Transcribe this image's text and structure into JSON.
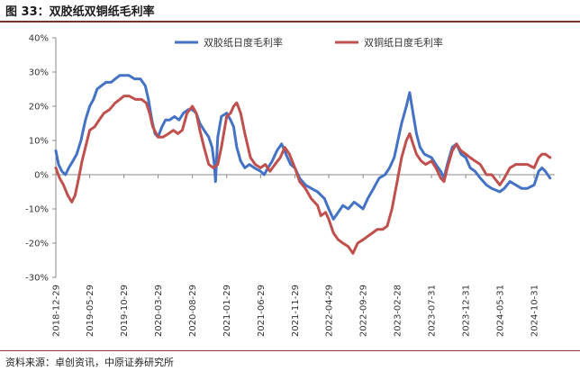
{
  "figure": {
    "title": "图 33：双胶纸双铜纸毛利率",
    "source": "资料来源：卓创资讯，中原证券研究所"
  },
  "colors": {
    "series_1": "#4472c4",
    "series_2": "#c0504d",
    "accent_rule": "#7a2e2e"
  },
  "chart_data": {
    "type": "line",
    "title": "",
    "xlabel": "",
    "ylabel": "",
    "ylim": [
      -30,
      40
    ],
    "y_ticks": [
      40,
      30,
      20,
      10,
      0,
      -10,
      -20,
      -30
    ],
    "y_tick_labels": [
      "40%",
      "30%",
      "20%",
      "10%",
      "0%",
      "-10%",
      "-20%",
      "-30%"
    ],
    "x_tick_labels": [
      "2018-12-29",
      "2019-05-29",
      "2019-10-29",
      "2020-03-29",
      "2020-08-29",
      "2021-01-29",
      "2021-06-29",
      "2021-11-29",
      "2022-04-29",
      "2022-09-29",
      "2023-02-28",
      "2023-07-31",
      "2023-12-31",
      "2024-05-31",
      "2024-10-31"
    ],
    "x_range": [
      "2018-12-29",
      "2025-01-31"
    ],
    "legend_position": "top",
    "grid": false,
    "series": [
      {
        "name": "双胶纸日度毛利率",
        "color": "#4472c4",
        "points": [
          [
            "2018-12-29",
            7
          ],
          [
            "2019-01-10",
            3
          ],
          [
            "2019-01-25",
            1
          ],
          [
            "2019-02-10",
            0
          ],
          [
            "2019-02-25",
            2
          ],
          [
            "2019-03-15",
            4
          ],
          [
            "2019-04-01",
            6
          ],
          [
            "2019-04-20",
            10
          ],
          [
            "2019-05-10",
            16
          ],
          [
            "2019-05-29",
            20
          ],
          [
            "2019-06-15",
            22
          ],
          [
            "2019-07-01",
            25
          ],
          [
            "2019-07-20",
            26
          ],
          [
            "2019-08-10",
            27
          ],
          [
            "2019-09-01",
            27
          ],
          [
            "2019-09-20",
            28
          ],
          [
            "2019-10-10",
            29
          ],
          [
            "2019-10-29",
            29
          ],
          [
            "2019-11-20",
            29
          ],
          [
            "2019-12-15",
            28
          ],
          [
            "2020-01-10",
            28
          ],
          [
            "2020-02-01",
            26
          ],
          [
            "2020-02-15",
            22
          ],
          [
            "2020-03-01",
            16
          ],
          [
            "2020-03-15",
            12
          ],
          [
            "2020-03-29",
            11
          ],
          [
            "2020-04-15",
            14
          ],
          [
            "2020-05-01",
            16
          ],
          [
            "2020-05-20",
            16
          ],
          [
            "2020-06-10",
            17
          ],
          [
            "2020-07-01",
            16
          ],
          [
            "2020-07-20",
            18
          ],
          [
            "2020-08-10",
            19
          ],
          [
            "2020-08-29",
            19
          ],
          [
            "2020-09-15",
            18
          ],
          [
            "2020-10-01",
            15
          ],
          [
            "2020-10-20",
            13
          ],
          [
            "2020-11-10",
            11
          ],
          [
            "2020-11-25",
            8
          ],
          [
            "2020-12-05",
            3
          ],
          [
            "2020-12-10",
            -2
          ],
          [
            "2020-12-20",
            11
          ],
          [
            "2021-01-05",
            17
          ],
          [
            "2021-01-29",
            18
          ],
          [
            "2021-02-15",
            16
          ],
          [
            "2021-03-01",
            14
          ],
          [
            "2021-03-15",
            8
          ],
          [
            "2021-04-01",
            4
          ],
          [
            "2021-04-20",
            2
          ],
          [
            "2021-05-10",
            3
          ],
          [
            "2021-06-01",
            2
          ],
          [
            "2021-06-29",
            1
          ],
          [
            "2021-07-15",
            0
          ],
          [
            "2021-08-01",
            2
          ],
          [
            "2021-08-20",
            4
          ],
          [
            "2021-09-10",
            7
          ],
          [
            "2021-10-01",
            9
          ],
          [
            "2021-10-20",
            6
          ],
          [
            "2021-11-10",
            3
          ],
          [
            "2021-11-29",
            2
          ],
          [
            "2021-12-20",
            -1
          ],
          [
            "2022-01-15",
            -3
          ],
          [
            "2022-02-10",
            -4
          ],
          [
            "2022-03-10",
            -5
          ],
          [
            "2022-04-10",
            -7
          ],
          [
            "2022-04-29",
            -10
          ],
          [
            "2022-05-20",
            -13
          ],
          [
            "2022-06-10",
            -11
          ],
          [
            "2022-07-01",
            -9
          ],
          [
            "2022-07-25",
            -10
          ],
          [
            "2022-08-20",
            -8
          ],
          [
            "2022-09-10",
            -9
          ],
          [
            "2022-09-29",
            -10
          ],
          [
            "2022-10-20",
            -7
          ],
          [
            "2022-11-15",
            -4
          ],
          [
            "2022-12-10",
            -1
          ],
          [
            "2023-01-05",
            0
          ],
          [
            "2023-01-25",
            2
          ],
          [
            "2023-02-15",
            5
          ],
          [
            "2023-02-28",
            9
          ],
          [
            "2023-03-20",
            15
          ],
          [
            "2023-04-10",
            20
          ],
          [
            "2023-04-25",
            24
          ],
          [
            "2023-05-10",
            18
          ],
          [
            "2023-05-25",
            12
          ],
          [
            "2023-06-10",
            8
          ],
          [
            "2023-06-30",
            6
          ],
          [
            "2023-07-31",
            5
          ],
          [
            "2023-08-20",
            3
          ],
          [
            "2023-09-10",
            1
          ],
          [
            "2023-09-25",
            -1
          ],
          [
            "2023-10-10",
            3
          ],
          [
            "2023-11-01",
            8
          ],
          [
            "2023-11-20",
            9
          ],
          [
            "2023-12-10",
            6
          ],
          [
            "2023-12-31",
            5
          ],
          [
            "2024-01-20",
            2
          ],
          [
            "2024-02-10",
            1
          ],
          [
            "2024-03-05",
            -1
          ],
          [
            "2024-04-01",
            -3
          ],
          [
            "2024-04-25",
            -4
          ],
          [
            "2024-05-31",
            -5
          ],
          [
            "2024-06-20",
            -4
          ],
          [
            "2024-07-15",
            -2
          ],
          [
            "2024-08-10",
            -3
          ],
          [
            "2024-09-05",
            -4
          ],
          [
            "2024-10-01",
            -4
          ],
          [
            "2024-10-31",
            -3
          ],
          [
            "2024-11-20",
            1
          ],
          [
            "2024-12-05",
            2
          ],
          [
            "2024-12-20",
            1
          ],
          [
            "2025-01-10",
            -1
          ]
        ]
      },
      {
        "name": "双铜纸日度毛利率",
        "color": "#c0504d",
        "points": [
          [
            "2018-12-29",
            2
          ],
          [
            "2019-01-15",
            -1
          ],
          [
            "2019-02-01",
            -3
          ],
          [
            "2019-02-20",
            -6
          ],
          [
            "2019-03-10",
            -8
          ],
          [
            "2019-03-25",
            -6
          ],
          [
            "2019-04-10",
            -1
          ],
          [
            "2019-04-25",
            4
          ],
          [
            "2019-05-10",
            8
          ],
          [
            "2019-05-29",
            13
          ],
          [
            "2019-06-20",
            14
          ],
          [
            "2019-07-10",
            16
          ],
          [
            "2019-08-01",
            18
          ],
          [
            "2019-08-25",
            19
          ],
          [
            "2019-09-20",
            21
          ],
          [
            "2019-10-10",
            22
          ],
          [
            "2019-10-29",
            23
          ],
          [
            "2019-11-20",
            23
          ],
          [
            "2019-12-20",
            22
          ],
          [
            "2020-01-15",
            22
          ],
          [
            "2020-02-05",
            21
          ],
          [
            "2020-02-20",
            18
          ],
          [
            "2020-03-05",
            14
          ],
          [
            "2020-03-29",
            11
          ],
          [
            "2020-04-20",
            11
          ],
          [
            "2020-05-15",
            12
          ],
          [
            "2020-06-05",
            13
          ],
          [
            "2020-06-25",
            12
          ],
          [
            "2020-07-15",
            13
          ],
          [
            "2020-08-05",
            18
          ],
          [
            "2020-08-29",
            20
          ],
          [
            "2020-09-15",
            18
          ],
          [
            "2020-10-01",
            13
          ],
          [
            "2020-10-20",
            8
          ],
          [
            "2020-11-10",
            3
          ],
          [
            "2020-12-01",
            2
          ],
          [
            "2020-12-20",
            3
          ],
          [
            "2021-01-05",
            8
          ],
          [
            "2021-01-29",
            17
          ],
          [
            "2021-02-15",
            18
          ],
          [
            "2021-03-01",
            20
          ],
          [
            "2021-03-15",
            21
          ],
          [
            "2021-04-01",
            18
          ],
          [
            "2021-04-20",
            12
          ],
          [
            "2021-05-15",
            5
          ],
          [
            "2021-06-05",
            3
          ],
          [
            "2021-06-29",
            2
          ],
          [
            "2021-07-20",
            3
          ],
          [
            "2021-08-10",
            1
          ],
          [
            "2021-09-01",
            3
          ],
          [
            "2021-09-25",
            5
          ],
          [
            "2021-10-15",
            8
          ],
          [
            "2021-11-05",
            6
          ],
          [
            "2021-11-29",
            2
          ],
          [
            "2021-12-20",
            -2
          ],
          [
            "2022-01-15",
            -4
          ],
          [
            "2022-02-10",
            -7
          ],
          [
            "2022-03-10",
            -9
          ],
          [
            "2022-03-25",
            -12
          ],
          [
            "2022-04-15",
            -11
          ],
          [
            "2022-04-29",
            -13
          ],
          [
            "2022-05-20",
            -17
          ],
          [
            "2022-06-10",
            -19
          ],
          [
            "2022-07-01",
            -20
          ],
          [
            "2022-07-25",
            -21
          ],
          [
            "2022-08-15",
            -23
          ],
          [
            "2022-09-05",
            -20
          ],
          [
            "2022-09-29",
            -19
          ],
          [
            "2022-10-20",
            -18
          ],
          [
            "2022-11-10",
            -17
          ],
          [
            "2022-12-01",
            -16
          ],
          [
            "2022-12-25",
            -16
          ],
          [
            "2023-01-15",
            -15
          ],
          [
            "2023-02-05",
            -10
          ],
          [
            "2023-02-28",
            -2
          ],
          [
            "2023-03-20",
            5
          ],
          [
            "2023-04-10",
            10
          ],
          [
            "2023-04-25",
            12
          ],
          [
            "2023-05-10",
            9
          ],
          [
            "2023-05-25",
            6
          ],
          [
            "2023-06-15",
            4
          ],
          [
            "2023-07-05",
            3
          ],
          [
            "2023-07-31",
            4
          ],
          [
            "2023-08-20",
            2
          ],
          [
            "2023-09-10",
            -1
          ],
          [
            "2023-09-25",
            -2
          ],
          [
            "2023-10-10",
            2
          ],
          [
            "2023-11-01",
            7
          ],
          [
            "2023-11-20",
            9
          ],
          [
            "2023-12-10",
            7
          ],
          [
            "2023-12-31",
            6
          ],
          [
            "2024-01-20",
            5
          ],
          [
            "2024-02-10",
            4
          ],
          [
            "2024-03-05",
            3
          ],
          [
            "2024-04-01",
            0
          ],
          [
            "2024-04-25",
            0
          ],
          [
            "2024-05-31",
            -3
          ],
          [
            "2024-06-20",
            -1
          ],
          [
            "2024-07-15",
            2
          ],
          [
            "2024-08-10",
            3
          ],
          [
            "2024-09-05",
            3
          ],
          [
            "2024-10-01",
            3
          ],
          [
            "2024-10-31",
            2
          ],
          [
            "2024-11-20",
            5
          ],
          [
            "2024-12-05",
            6
          ],
          [
            "2024-12-20",
            6
          ],
          [
            "2025-01-10",
            5
          ]
        ]
      }
    ]
  }
}
